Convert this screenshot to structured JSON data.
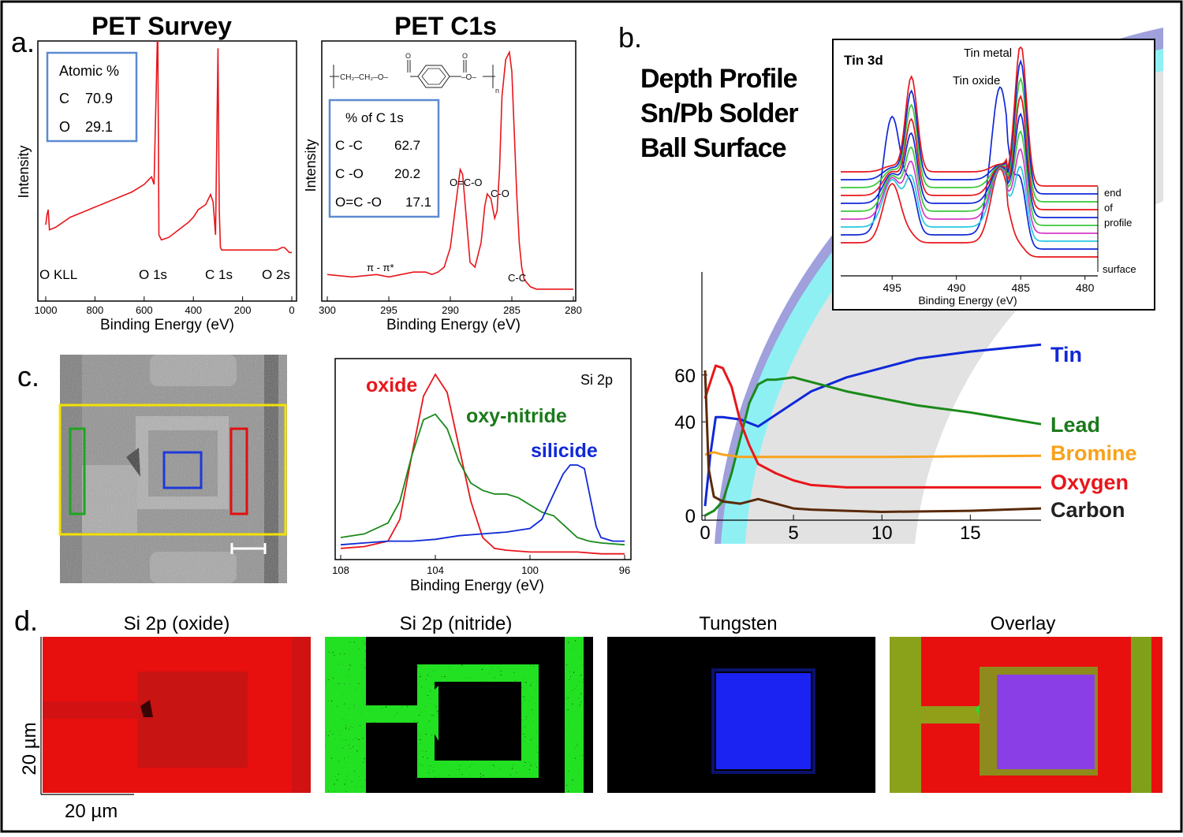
{
  "panel_letters": {
    "a": "a.",
    "b": "b.",
    "c": "c.",
    "d": "d."
  },
  "colors": {
    "red": "#e8161b",
    "green": "#1a8a1a",
    "blue": "#1028d8",
    "orange": "#f7a21b",
    "brown": "#5a2a0a",
    "dark_green_text": "#1a7a1a"
  },
  "chart_data": [
    {
      "id": "pet-survey",
      "type": "line",
      "title": "PET Survey",
      "xlabel": "Binding Energy (eV)",
      "ylabel": "Intensity",
      "xlim": [
        1000,
        0
      ],
      "x_ticks": [
        "1000",
        "800",
        "600",
        "400",
        "200",
        "0"
      ],
      "peak_labels": [
        "O KLL",
        "O 1s",
        "C 1s",
        "O 2s"
      ],
      "inset": {
        "title": "Atomic %",
        "rows": [
          [
            "C",
            "70.9"
          ],
          [
            "O",
            "29.1"
          ]
        ]
      },
      "series": [
        {
          "color": "#e8161b",
          "x": [
            1000,
            995,
            990,
            985,
            960,
            900,
            850,
            800,
            750,
            700,
            650,
            600,
            580,
            570,
            560,
            550,
            545,
            540,
            530,
            500,
            460,
            420,
            400,
            380,
            350,
            330,
            320,
            310,
            300,
            295,
            290,
            285,
            280,
            250,
            200,
            150,
            100,
            60,
            40,
            30,
            20,
            10,
            0
          ],
          "y": [
            0.14,
            0.18,
            0.2,
            0.12,
            0.13,
            0.17,
            0.19,
            0.21,
            0.23,
            0.25,
            0.27,
            0.3,
            0.32,
            0.33,
            0.3,
            0.72,
            0.95,
            0.1,
            0.08,
            0.09,
            0.12,
            0.15,
            0.17,
            0.2,
            0.22,
            0.26,
            0.23,
            0.1,
            0.84,
            0.2,
            0.05,
            0.04,
            0.04,
            0.04,
            0.04,
            0.04,
            0.04,
            0.04,
            0.05,
            0.05,
            0.04,
            0.03,
            0.03
          ]
        }
      ]
    },
    {
      "id": "pet-c1s",
      "type": "line",
      "title": "PET C1s",
      "xlabel": "Binding Energy (eV)",
      "ylabel": "Intensity",
      "xlim": [
        300,
        280
      ],
      "x_ticks": [
        "300",
        "295",
        "290",
        "285",
        "280"
      ],
      "peak_labels": [
        "O=C-O",
        "C-O",
        "C-C",
        "π - π*"
      ],
      "structure_text": {
        "chain1": "CH₂–CH₂–O–",
        "oxygen": "O",
        "ester": "–O–",
        "sub": "n"
      },
      "inset": {
        "title": "% of C 1s",
        "rows": [
          [
            "C -C",
            "62.7"
          ],
          [
            "C -O",
            "20.2"
          ],
          [
            "O=C -O",
            "17.1"
          ]
        ]
      },
      "series": [
        {
          "color": "#e8161b",
          "x": [
            300,
            298,
            296,
            295,
            294,
            293,
            292,
            291.5,
            291,
            290.5,
            290,
            289.5,
            289.2,
            289,
            288.7,
            288.4,
            288,
            287.5,
            287.2,
            287,
            286.7,
            286.4,
            286.2,
            286,
            285.8,
            285.5,
            285.2,
            285,
            284.8,
            284.6,
            284.4,
            284.2,
            284,
            283.5,
            283,
            282,
            281,
            280
          ],
          "y": [
            0.07,
            0.06,
            0.07,
            0.06,
            0.07,
            0.08,
            0.08,
            0.07,
            0.08,
            0.1,
            0.18,
            0.38,
            0.5,
            0.48,
            0.3,
            0.12,
            0.1,
            0.2,
            0.35,
            0.4,
            0.38,
            0.3,
            0.33,
            0.5,
            0.8,
            0.95,
            0.98,
            0.9,
            0.65,
            0.4,
            0.2,
            0.1,
            0.05,
            0.02,
            0.01,
            0.01,
            0.01,
            0.01
          ]
        }
      ]
    },
    {
      "id": "si-2p",
      "type": "line",
      "title": "Si 2p",
      "xlabel": "Binding Energy (eV)",
      "xlim": [
        108,
        96
      ],
      "x_ticks": [
        "108",
        "104",
        "100",
        "96"
      ],
      "series": [
        {
          "name": "oxide",
          "color": "#e8161b",
          "x": [
            108,
            107,
            106,
            105.5,
            105,
            104.5,
            104,
            103.5,
            103,
            102.5,
            102,
            101.5,
            101,
            100,
            99,
            98,
            97,
            96
          ],
          "y": [
            0.04,
            0.05,
            0.08,
            0.2,
            0.55,
            0.88,
            1.0,
            0.9,
            0.6,
            0.3,
            0.1,
            0.04,
            0.03,
            0.02,
            0.02,
            0.02,
            0.01,
            0.01
          ]
        },
        {
          "name": "oxy-nitride",
          "color": "#1a8a1a",
          "x": [
            108,
            107,
            106,
            105.5,
            105,
            104.5,
            104,
            103.5,
            103,
            102.5,
            102,
            101.5,
            101,
            100.5,
            100,
            99.5,
            99,
            98.5,
            98,
            97.5,
            97,
            96
          ],
          "y": [
            0.1,
            0.12,
            0.18,
            0.3,
            0.55,
            0.75,
            0.78,
            0.7,
            0.52,
            0.4,
            0.36,
            0.34,
            0.34,
            0.32,
            0.28,
            0.24,
            0.22,
            0.16,
            0.1,
            0.08,
            0.07,
            0.06
          ]
        },
        {
          "name": "silicide",
          "color": "#1028d8",
          "x": [
            108,
            107,
            106,
            105,
            104,
            103,
            102,
            101,
            100,
            99.5,
            99,
            98.6,
            98.3,
            98,
            97.7,
            97.5,
            97.2,
            97,
            96.5,
            96
          ],
          "y": [
            0.06,
            0.07,
            0.08,
            0.08,
            0.09,
            0.11,
            0.12,
            0.13,
            0.15,
            0.2,
            0.34,
            0.45,
            0.5,
            0.5,
            0.48,
            0.35,
            0.16,
            0.1,
            0.08,
            0.08
          ]
        }
      ]
    },
    {
      "id": "depth-profile",
      "type": "line",
      "title": "Depth Profile Sn/Pb Solder Ball Surface",
      "title_lines": [
        "Depth Profile",
        "Sn/Pb Solder",
        "Ball Surface"
      ],
      "xlim": [
        0,
        19
      ],
      "ylim": [
        0,
        80
      ],
      "x_ticks": [
        "0",
        "5",
        "10",
        "15"
      ],
      "y_ticks": [
        "0",
        "40",
        "60"
      ],
      "series": [
        {
          "name": "Tin",
          "color": "#1028d8",
          "x": [
            0,
            0.3,
            0.6,
            1,
            2,
            3,
            4,
            5,
            6,
            8,
            10,
            12,
            15,
            19
          ],
          "y": [
            4,
            26,
            42,
            42,
            41,
            38,
            43,
            48,
            53,
            59,
            63,
            67,
            70,
            73
          ]
        },
        {
          "name": "Lead",
          "color": "#1a8a1a",
          "x": [
            0,
            0.5,
            1,
            1.5,
            2,
            2.5,
            3,
            3.5,
            4,
            5,
            6,
            8,
            10,
            12,
            15,
            19
          ],
          "y": [
            0,
            2,
            6,
            18,
            33,
            48,
            56,
            58,
            58,
            59,
            57,
            53,
            50,
            47,
            44,
            39
          ]
        },
        {
          "name": "Bromine",
          "color": "#f7a21b",
          "x": [
            0,
            0.5,
            1,
            2,
            3,
            5,
            10,
            15,
            19
          ],
          "y": [
            26,
            27,
            26,
            25,
            25,
            25,
            25,
            25.3,
            25.5
          ]
        },
        {
          "name": "Oxygen",
          "color": "#e8161b",
          "x": [
            0,
            0.3,
            0.6,
            1,
            1.5,
            2,
            2.5,
            3,
            4,
            5,
            6,
            8,
            10,
            15,
            19
          ],
          "y": [
            50,
            57,
            64,
            63,
            55,
            40,
            30,
            22,
            18,
            15,
            13,
            12,
            12,
            12,
            12
          ]
        },
        {
          "name": "Carbon",
          "color": "#5a2a0a",
          "x": [
            0,
            0.2,
            0.5,
            1,
            2,
            3,
            4,
            5,
            6,
            8,
            10,
            15,
            19
          ],
          "y": [
            62,
            20,
            8,
            6,
            5,
            7,
            5,
            3,
            2.5,
            2,
            1.5,
            2,
            3
          ]
        }
      ]
    },
    {
      "id": "tin-3d",
      "type": "line",
      "title": "Tin 3d",
      "xlabel": "Binding Energy (eV)",
      "xlim": [
        499,
        479
      ],
      "x_ticks": [
        "495",
        "490",
        "485",
        "480"
      ],
      "peak_labels": [
        "Tin metal",
        "Tin oxide"
      ],
      "side_labels": [
        "end",
        "of",
        "profile",
        "surface"
      ],
      "series": [
        {
          "color": "#e8161b"
        },
        {
          "color": "#1028d8"
        },
        {
          "color": "#29c8e0"
        },
        {
          "color": "#d43ac8"
        },
        {
          "color": "#3ac83a"
        },
        {
          "color": "#1028d8"
        },
        {
          "color": "#e8161b"
        },
        {
          "color": "#3ac83a"
        },
        {
          "color": "#1028d8"
        },
        {
          "color": "#e8161b"
        }
      ]
    }
  ],
  "maps": {
    "c_scale_bar": "",
    "d_titles": [
      "Si 2p (oxide)",
      "Si 2p (nitride)",
      "Tungsten",
      "Overlay"
    ],
    "d_scale_y": "20 µm",
    "d_scale_x": "20 µm"
  }
}
